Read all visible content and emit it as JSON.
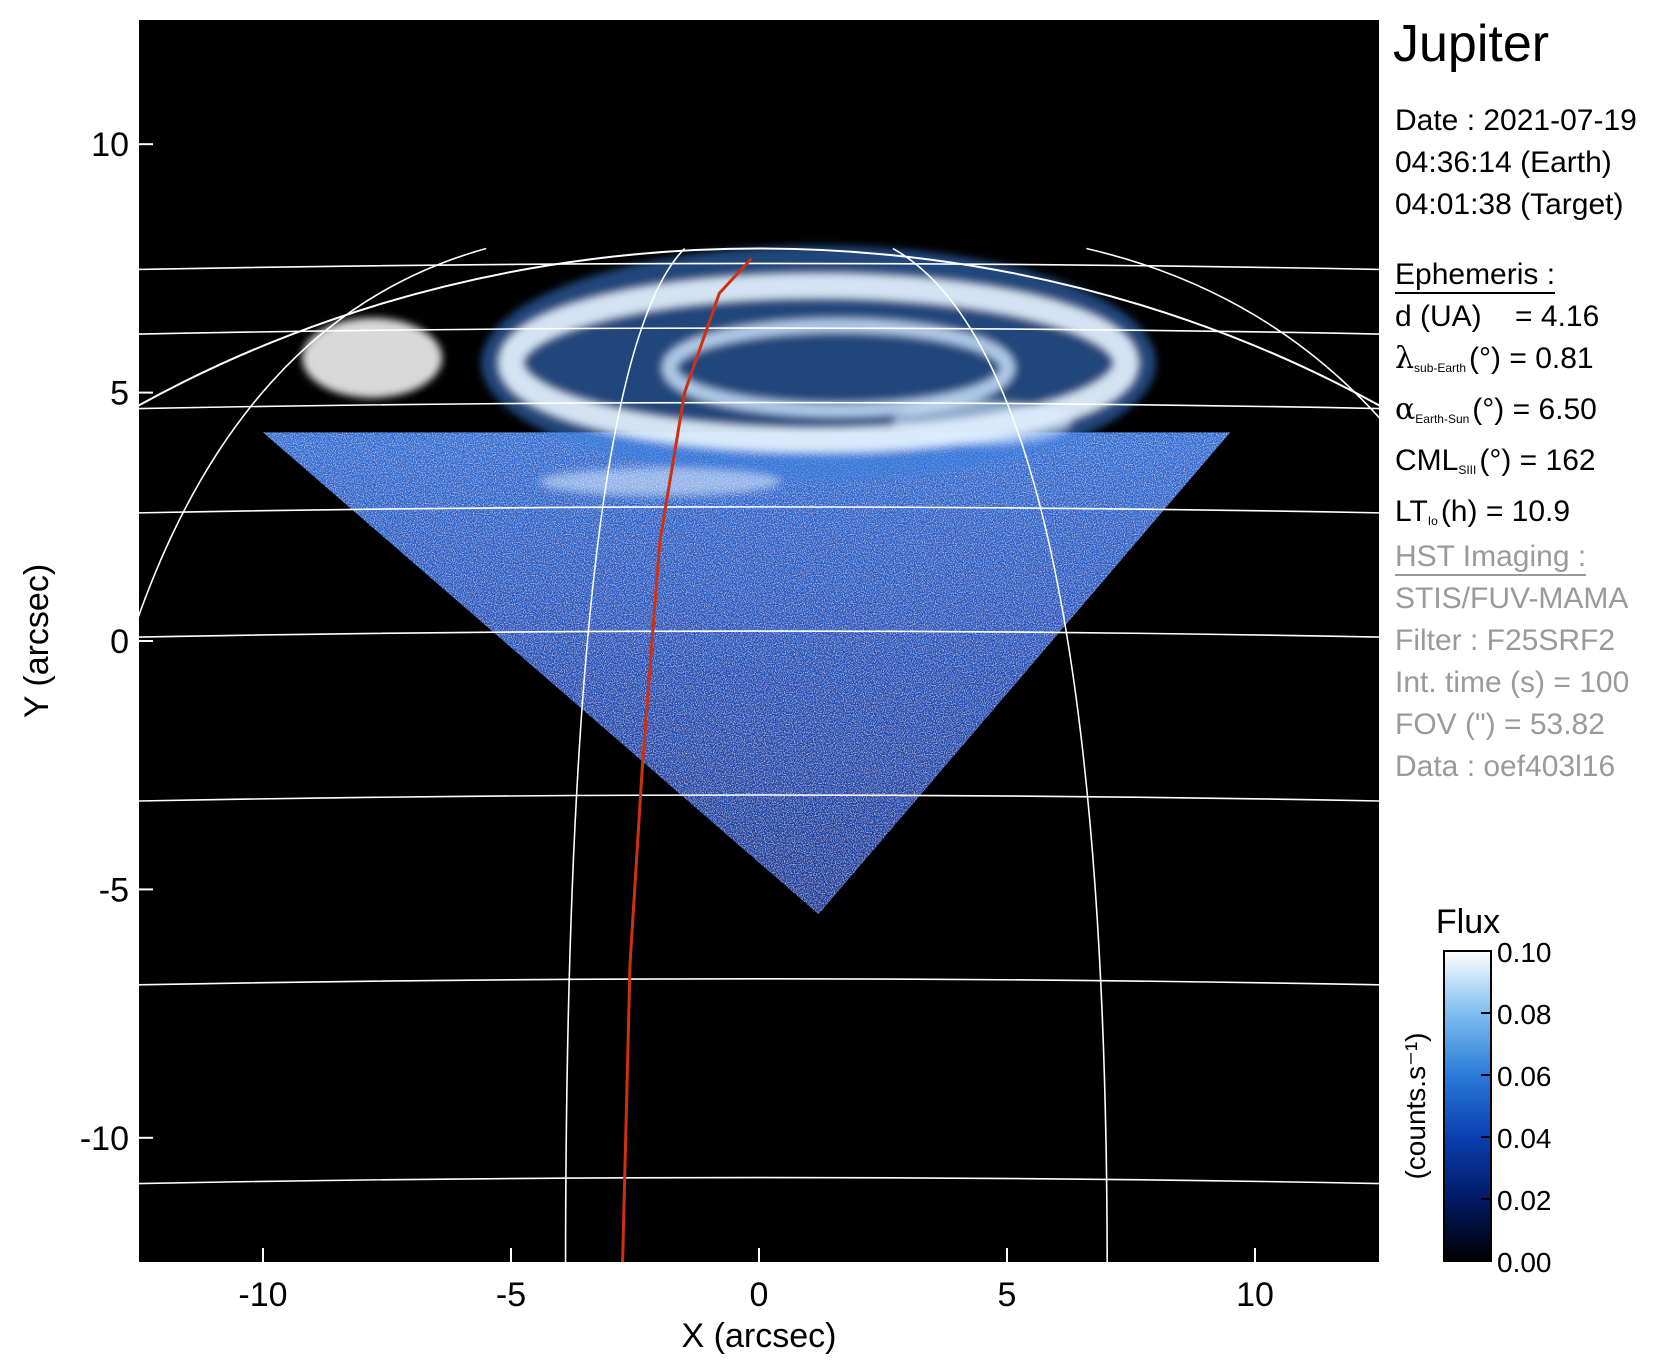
{
  "title": "Jupiter",
  "date_lines": [
    "Date : 2021-07-19",
    "04:36:14 (Earth)",
    "04:01:38 (Target)"
  ],
  "ephemeris": {
    "header": "Ephemeris :",
    "d_label": "d (UA)",
    "d_value": "= 4.16",
    "lambda_symbol": "λ",
    "lambda_sub": "sub-Earth",
    "lambda_rest": "(°) = 0.81",
    "alpha_symbol": "α",
    "alpha_sub": "Earth-Sun",
    "alpha_rest": "(°) = 6.50",
    "cml_symbol": "CML",
    "cml_sub": "SIII",
    "cml_rest": "(°) = 162",
    "lt_symbol": "LT",
    "lt_sub": "Io",
    "lt_rest": "(h) = 10.9"
  },
  "imaging": {
    "header": "HST Imaging :",
    "lines": [
      "STIS/FUV-MAMA",
      "Filter : F25SRF2",
      "Int. time (s) = 100",
      "FOV (\") = 53.82",
      "Data : oef403l16"
    ]
  },
  "colorbar": {
    "title": "Flux",
    "label": "(counts.s⁻¹)",
    "ticks": [
      "0.10",
      "0.08",
      "0.06",
      "0.04",
      "0.02",
      "0.00"
    ],
    "range": [
      0.0,
      0.1
    ],
    "colors": [
      "#000000",
      "#001a66",
      "#0a3fb0",
      "#2a7ad8",
      "#7fbef0",
      "#ffffff"
    ]
  },
  "chart_data": {
    "type": "heatmap",
    "xlabel": "X (arcsec)",
    "ylabel": "Y (arcsec)",
    "xlim": [
      -12.5,
      12.5
    ],
    "ylim": [
      -12.5,
      12.5
    ],
    "xticks": [
      -10,
      -5,
      0,
      5,
      10
    ],
    "yticks": [
      10,
      5,
      0,
      -5,
      -10
    ],
    "background_color": "#000000",
    "grid_color": "#ffffff",
    "footprint_color": "#d03010",
    "image_footprint": [
      [
        -10.0,
        4.2
      ],
      [
        1.2,
        -5.5
      ],
      [
        9.5,
        4.2
      ]
    ],
    "auroral_oval": {
      "center": [
        1.2,
        5.6
      ],
      "radii": [
        6.2,
        1.55
      ]
    },
    "jupiter_limb": {
      "center": [
        0,
        -12.7
      ],
      "radii": [
        23.5,
        20.6
      ]
    },
    "latitude_lines_y": [
      7.6,
      6.3,
      4.8,
      2.7,
      0.2,
      -3.1,
      -6.8,
      -10.8
    ],
    "longitude_meridian_x_at_limb": [
      -5.5,
      -1.5,
      2.7,
      6.6
    ],
    "footprint_track": [
      [
        -0.15,
        7.7
      ],
      [
        -0.8,
        7.0
      ],
      [
        -1.5,
        5.0
      ],
      [
        -2.0,
        2.0
      ],
      [
        -2.35,
        -2.5
      ],
      [
        -2.6,
        -6.5
      ],
      [
        -2.75,
        -12.5
      ]
    ]
  }
}
